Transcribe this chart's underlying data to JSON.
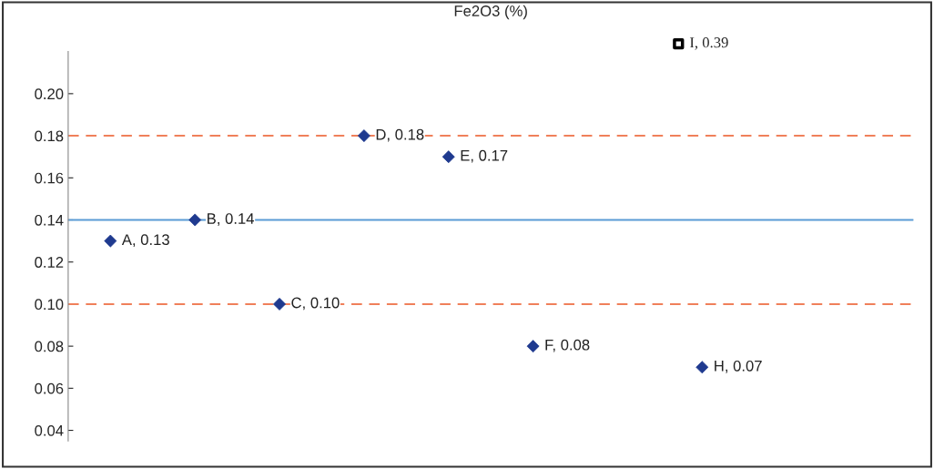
{
  "chart_data": {
    "type": "scatter",
    "title": "Fe2O3 (%)",
    "categories": [
      null,
      null,
      null,
      null,
      null,
      null,
      null,
      null,
      null,
      null
    ],
    "series": [
      {
        "color": "#1f3a8f",
        "values": [
          0.13,
          0.14,
          0.1,
          0.18,
          0.17,
          0.08,
          null,
          0.07,
          null,
          null
        ],
        "value_labels": [
          "A, 0.13",
          "B, 0.14",
          "C, 0.10",
          "D, 0.18",
          "E, 0.17",
          "F, 0.08",
          null,
          "H, 0.07",
          null,
          null
        ]
      }
    ],
    "marker": "diamond",
    "ylim": [
      0.035,
      0.22
    ],
    "yticks": [
      {
        "value": 0.04,
        "label": "0.04"
      },
      {
        "value": 0.06,
        "label": "0.06"
      },
      {
        "value": 0.08,
        "label": "0.08"
      },
      {
        "value": 0.1,
        "label": "0.10"
      },
      {
        "value": 0.12,
        "label": "0.12"
      },
      {
        "value": 0.14,
        "label": "0.14"
      },
      {
        "value": 0.16,
        "label": "0.16"
      },
      {
        "value": 0.18,
        "label": "0.18"
      },
      {
        "value": 0.2,
        "label": "0.20"
      }
    ],
    "ref_lines": [
      {
        "axis": "y",
        "value": 0.14,
        "color": "#5b9bd5",
        "line_style": "solid"
      },
      {
        "axis": "y",
        "value": 0.18,
        "color": "#f0805a",
        "line_style": "dashed"
      },
      {
        "axis": "y",
        "value": 0.1,
        "color": "#f0805a",
        "line_style": "dashed"
      }
    ],
    "annotations": [
      "I, 0.39"
    ],
    "grid": false,
    "legend": false
  }
}
